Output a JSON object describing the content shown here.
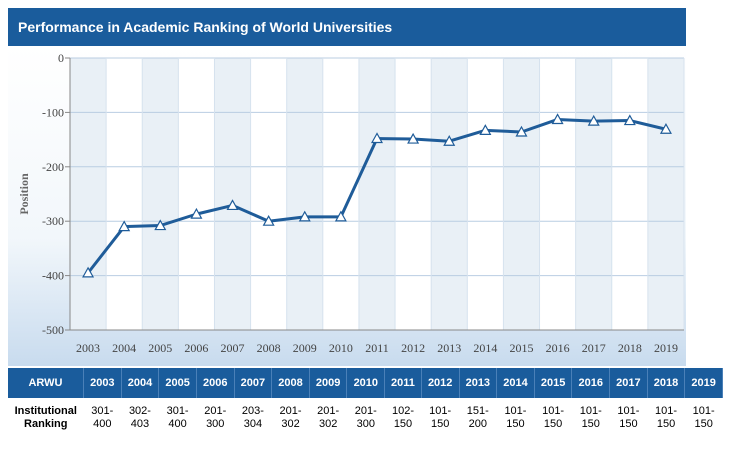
{
  "title": "Performance in Academic Ranking of World Universities",
  "chart_data": {
    "type": "line",
    "ylabel": "Position",
    "xlabel": "",
    "ylim": [
      -500,
      0
    ],
    "yticks": [
      "0",
      "-100",
      "-200",
      "-300",
      "-400",
      "-500"
    ],
    "grid": true,
    "x": [
      "2003",
      "2004",
      "2005",
      "2006",
      "2007",
      "2008",
      "2009",
      "2010",
      "2011",
      "2012",
      "2013",
      "2014",
      "2015",
      "2016",
      "2017",
      "2018",
      "2019"
    ],
    "series": [
      {
        "values": [
          -395,
          -310,
          -308,
          -287,
          -271,
          -300,
          -292,
          -292,
          -148,
          -149,
          -153,
          -133,
          -136,
          -113,
          -116,
          -115,
          -131
        ]
      }
    ],
    "line_color": "#1f5c99",
    "marker": "triangle"
  },
  "table": {
    "header_label": "ARWU",
    "row_label": "Institutional Ranking",
    "years": [
      "2003",
      "2004",
      "2005",
      "2006",
      "2007",
      "2008",
      "2009",
      "2010",
      "2011",
      "2012",
      "2013",
      "2014",
      "2015",
      "2016",
      "2017",
      "2018",
      "2019"
    ],
    "rankings": [
      [
        "301-",
        "400"
      ],
      [
        "302-",
        "403"
      ],
      [
        "301-",
        "400"
      ],
      [
        "201-",
        "300"
      ],
      [
        "203-",
        "304"
      ],
      [
        "201-",
        "302"
      ],
      [
        "201-",
        "302"
      ],
      [
        "201-",
        "300"
      ],
      [
        "102-",
        "150"
      ],
      [
        "101-",
        "150"
      ],
      [
        "151-",
        "200"
      ],
      [
        "101-",
        "150"
      ],
      [
        "101-",
        "150"
      ],
      [
        "101-",
        "150"
      ],
      [
        "101-",
        "150"
      ],
      [
        "101-",
        "150"
      ],
      [
        "101-",
        "150"
      ]
    ]
  },
  "colors": {
    "header_blue": "#1a5c9c",
    "line": "#1f5c99"
  }
}
